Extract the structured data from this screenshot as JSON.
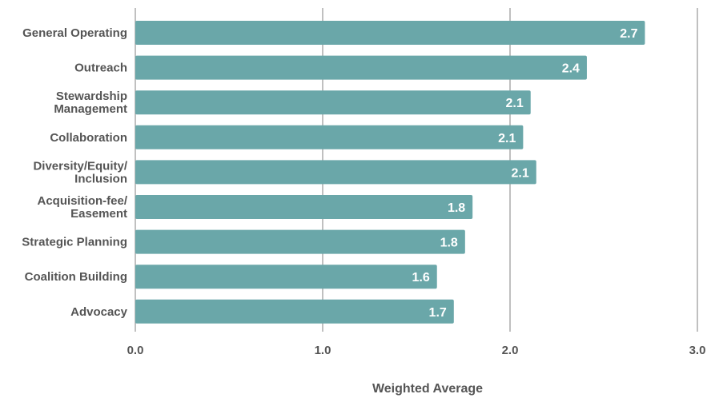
{
  "chart_data": {
    "type": "bar",
    "orientation": "horizontal",
    "categories": [
      [
        "General Operating"
      ],
      [
        "Outreach"
      ],
      [
        "Stewardship",
        "Management"
      ],
      [
        "Collaboration"
      ],
      [
        "Diversity/Equity/",
        "Inclusion"
      ],
      [
        "Acquisition-fee/",
        "Easement"
      ],
      [
        "Strategic Planning"
      ],
      [
        "Coalition Building"
      ],
      [
        "Advocacy"
      ]
    ],
    "values": [
      2.72,
      2.41,
      2.11,
      2.07,
      2.14,
      1.8,
      1.76,
      1.61,
      1.7
    ],
    "value_labels": [
      "2.7",
      "2.4",
      "2.1",
      "2.1",
      "2.1",
      "1.8",
      "1.8",
      "1.6",
      "1.7"
    ],
    "xlabel": "Weighted Average",
    "xlim": [
      0,
      3
    ],
    "xticks": [
      0,
      1,
      2,
      3
    ],
    "xtick_labels": [
      "0.0",
      "1.0",
      "2.0",
      "3.0"
    ],
    "grid": "vertical",
    "bar_color": "#6aa7a9"
  }
}
